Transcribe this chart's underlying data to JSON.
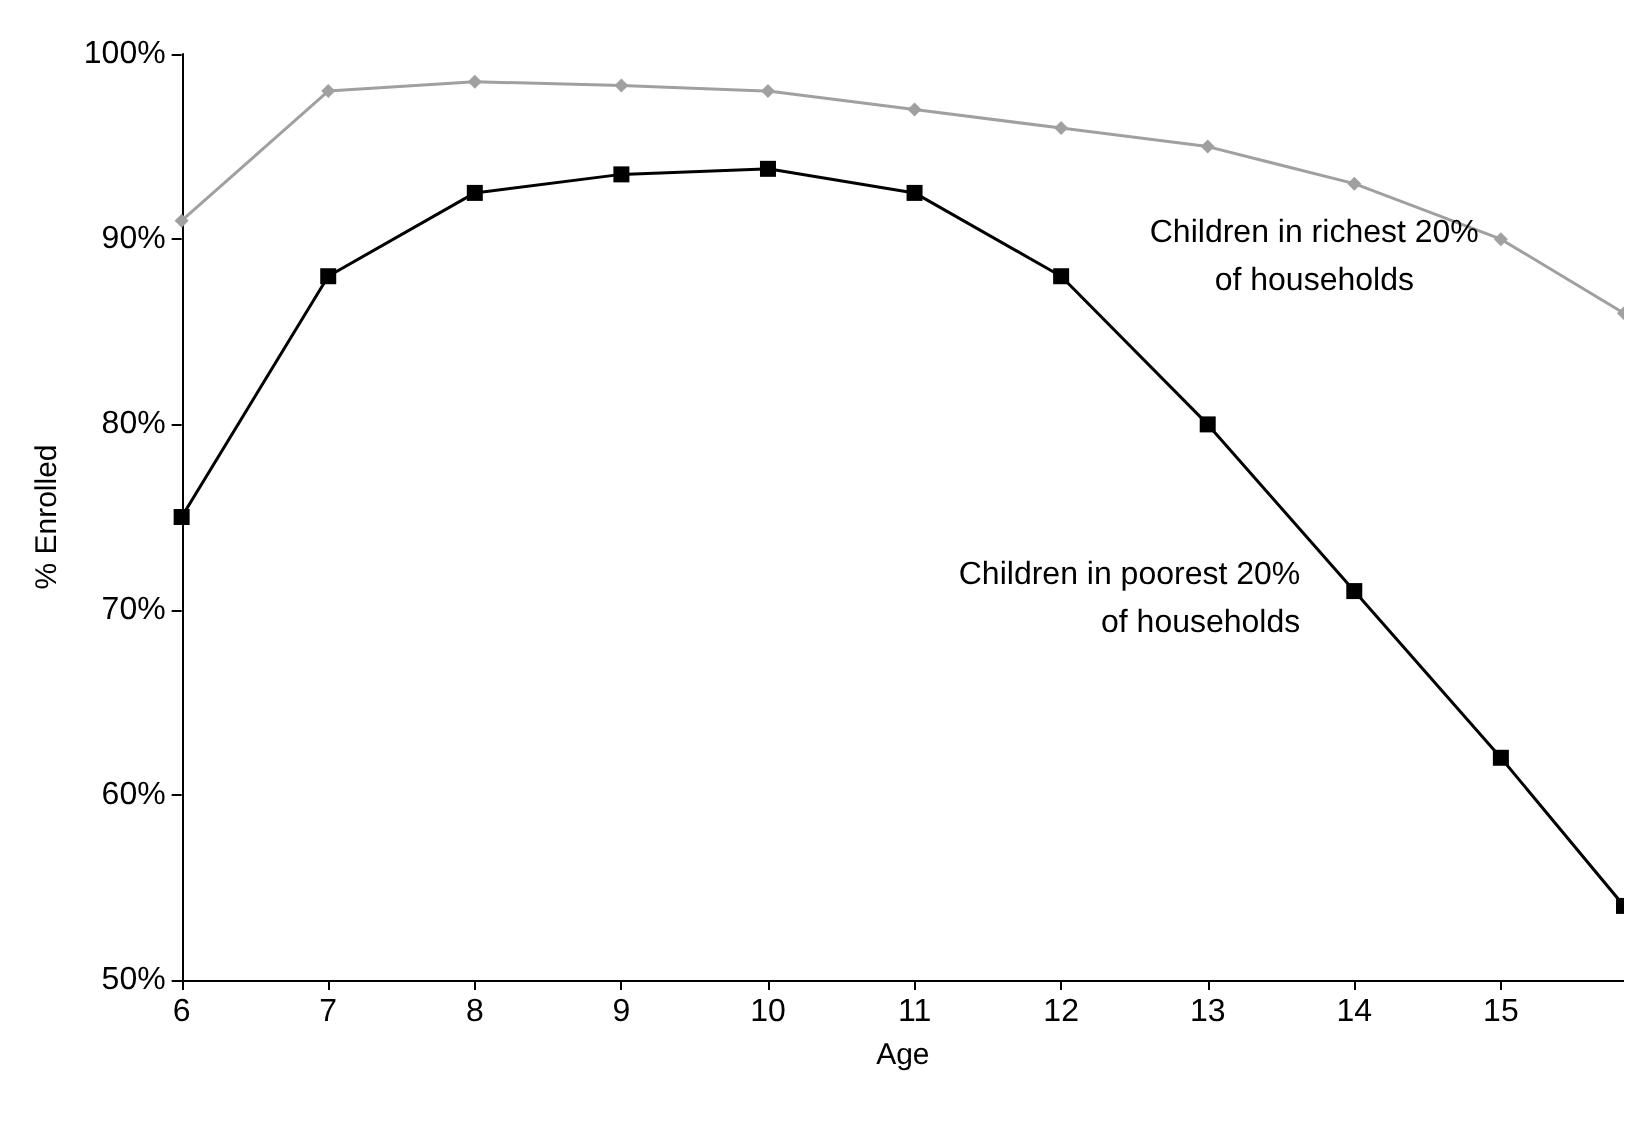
{
  "chart_data": {
    "type": "line",
    "xlabel": "Age",
    "ylabel": "% Enrolled",
    "xlim": [
      6,
      15.84
    ],
    "xticks": [
      6,
      7,
      8,
      9,
      10,
      11,
      12,
      13,
      14,
      15
    ],
    "ylim": [
      50,
      100
    ],
    "yticks": [
      {
        "value": 50,
        "label": "50%"
      },
      {
        "value": 60,
        "label": "60%"
      },
      {
        "value": 70,
        "label": "70%"
      },
      {
        "value": 80,
        "label": "80%"
      },
      {
        "value": 90,
        "label": "90%"
      },
      {
        "value": 100,
        "label": "100%"
      }
    ],
    "grid": false,
    "legend": false,
    "line_style": "solid",
    "series": [
      {
        "name": "Children in richest 20%\nof households",
        "color": "#a0a0a0",
        "marker": "diamond",
        "x": [
          6,
          7,
          8,
          9,
          10,
          11,
          12,
          13,
          14,
          15,
          15.84
        ],
        "values": [
          91,
          98,
          98.5,
          98.3,
          98,
          97,
          96,
          95,
          93,
          90,
          86
        ]
      },
      {
        "name": "Children in poorest 20%\nof households",
        "color": "#000000",
        "marker": "square",
        "x": [
          6,
          7,
          8,
          9,
          10,
          11,
          12,
          13,
          14,
          15,
          15.84
        ],
        "values": [
          75,
          88,
          92.5,
          93.5,
          93.8,
          92.5,
          88,
          80,
          71,
          62,
          54
        ]
      }
    ]
  }
}
